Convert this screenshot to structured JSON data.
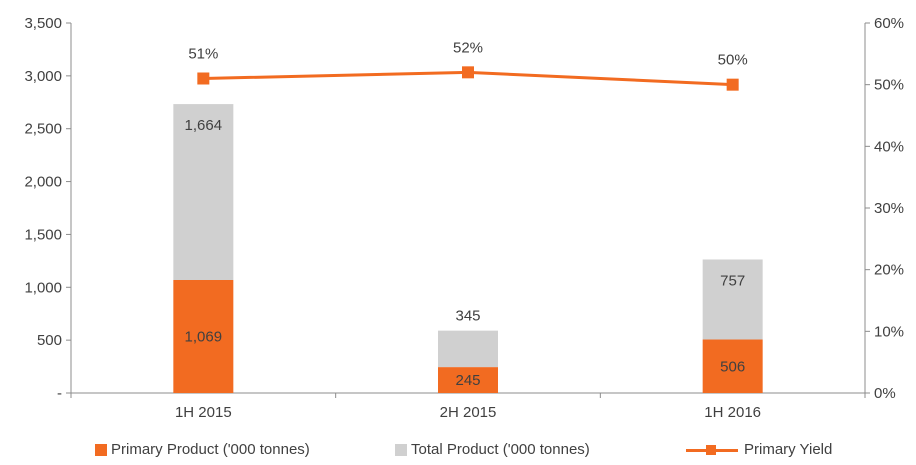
{
  "chart_data": {
    "type": "bar",
    "categories": [
      "1H 2015",
      "2H 2015",
      "1H 2016"
    ],
    "series": [
      {
        "name": "Primary Product ('000 tonnes)",
        "type": "bar",
        "axis": "left",
        "values": [
          1069,
          245,
          506
        ],
        "labels": [
          "1,069",
          "245",
          "506"
        ],
        "color": "#f26b21"
      },
      {
        "name": "Total Product ('000 tonnes)",
        "type": "bar",
        "axis": "left",
        "values": [
          1664,
          345,
          757
        ],
        "labels": [
          "1,664",
          "345",
          "757"
        ],
        "color": "#d0d0d0",
        "stacked_on": "Primary Product ('000 tonnes)"
      },
      {
        "name": "Primary Yield",
        "type": "line",
        "axis": "right",
        "values": [
          0.51,
          0.52,
          0.5
        ],
        "labels": [
          "51%",
          "52%",
          "50%"
        ],
        "color": "#f26b21"
      }
    ],
    "y_left": {
      "min": 0,
      "max": 3500,
      "ticks": [
        0,
        500,
        1000,
        1500,
        2000,
        2500,
        3000,
        3500
      ],
      "tick_labels": [
        "-",
        "500",
        "1,000",
        "1,500",
        "2,000",
        "2,500",
        "3,000",
        "3,500"
      ]
    },
    "y_right": {
      "min": 0,
      "max": 0.6,
      "ticks": [
        0,
        0.1,
        0.2,
        0.3,
        0.4,
        0.5,
        0.6
      ],
      "tick_labels": [
        "0%",
        "10%",
        "20%",
        "30%",
        "40%",
        "50%",
        "60%"
      ]
    },
    "grid": false,
    "legend_position": "bottom",
    "title": "",
    "xlabel": "",
    "ylabel": ""
  },
  "colors": {
    "primary": "#f26b21",
    "total": "#d0d0d0",
    "axis": "#8c8c8c",
    "text": "#404040"
  }
}
